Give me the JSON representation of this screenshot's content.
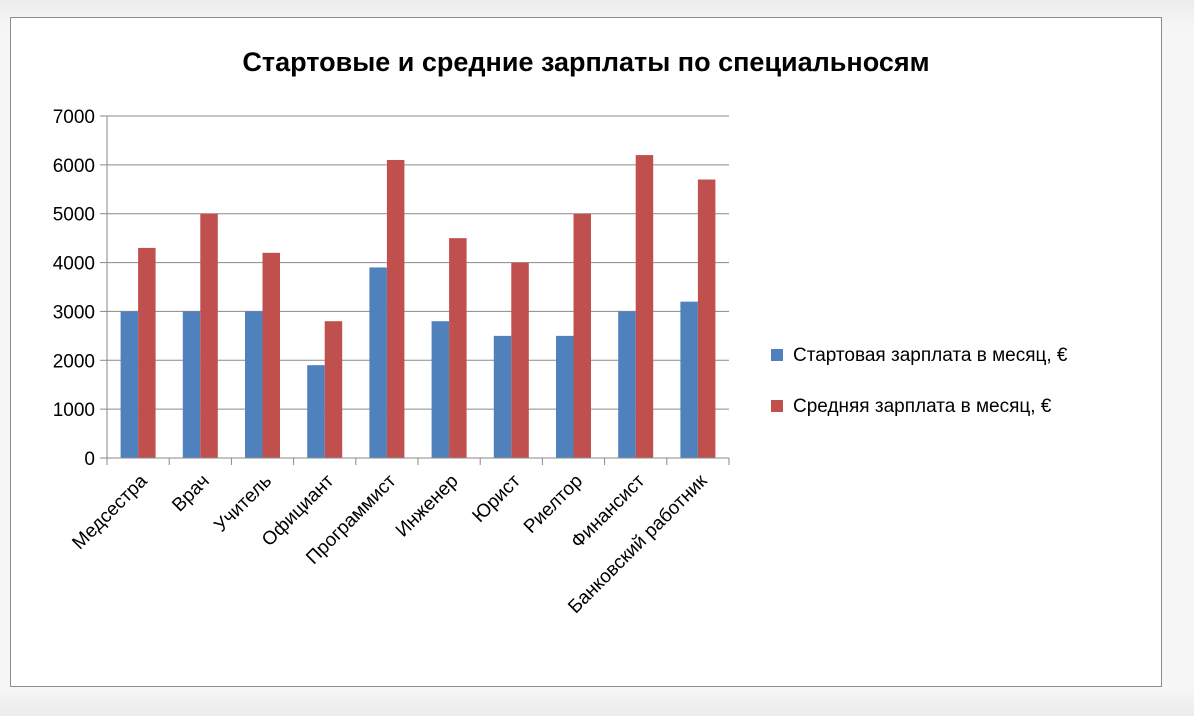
{
  "chart_data": {
    "type": "bar",
    "title": "Стартовые и средние зарплаты по специальносям",
    "categories": [
      "Медсестра",
      "Врач",
      "Учитель",
      "Официант",
      "Программист",
      "Инженер",
      "Юрист",
      "Риелтор",
      "Финансист",
      "Банковский работник"
    ],
    "series": [
      {
        "name": "Стартовая зарплата в месяц, €",
        "color": "#4f81bd",
        "values": [
          3000,
          3000,
          3000,
          1900,
          3900,
          2800,
          2500,
          2500,
          3000,
          3200
        ]
      },
      {
        "name": "Средняя  зарплата в месяц, €",
        "color": "#c0504d",
        "values": [
          4300,
          5000,
          4200,
          2800,
          6100,
          4500,
          4000,
          5000,
          6200,
          5700
        ]
      }
    ],
    "ylim": [
      0,
      7000
    ],
    "yticks": [
      "0",
      "1000",
      "2000",
      "3000",
      "4000",
      "5000",
      "6000",
      "7000"
    ],
    "grid": true,
    "legend": "right",
    "xlabel": "",
    "ylabel": ""
  }
}
